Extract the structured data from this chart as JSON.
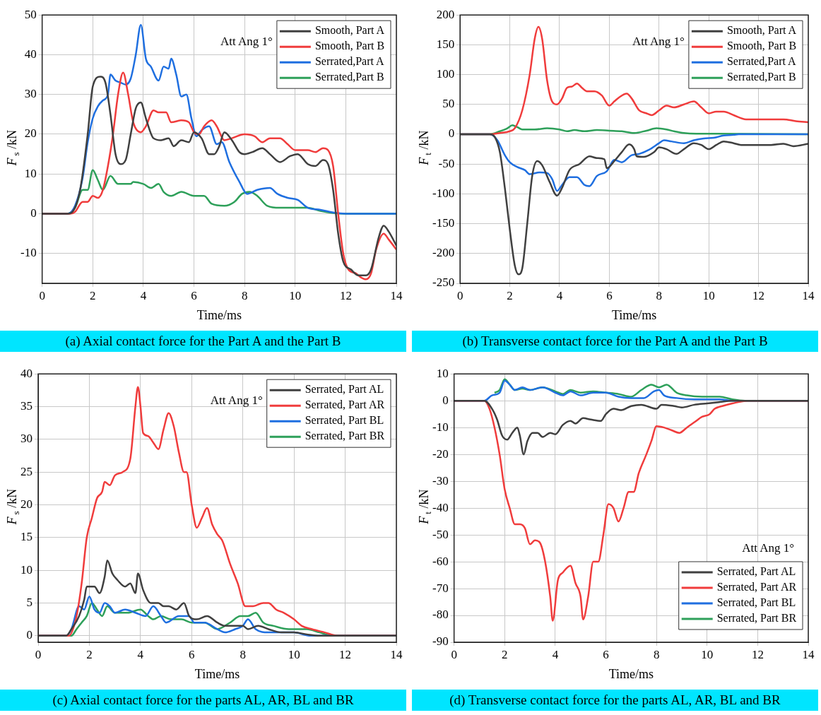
{
  "chart_data": [
    {
      "type": "line",
      "title": "(a) Axial contact force for the Part A and the Part B",
      "xlabel": "Time/ms",
      "ylabel": "F$_{s}$ /kN",
      "annotations": [
        "Att Ang 1°"
      ],
      "legend": "top right",
      "grid": true,
      "xlim": [
        0,
        14
      ],
      "xticks": [
        0,
        2,
        4,
        6,
        8,
        10,
        12,
        14
      ],
      "ylim": [
        -17.5,
        50
      ],
      "yticks": [
        -10,
        0,
        10,
        20,
        30,
        40,
        50
      ],
      "series": [
        {
          "name": "Smooth, Part A",
          "color": "#404040",
          "x": [
            0,
            1,
            1.2,
            1.5,
            1.8,
            2,
            2.3,
            2.5,
            2.7,
            2.9,
            3.1,
            3.3,
            3.5,
            3.7,
            3.9,
            4.1,
            4.4,
            4.7,
            5,
            5.2,
            5.5,
            5.8,
            6,
            6.3,
            6.6,
            6.8,
            7,
            7.2,
            7.5,
            7.8,
            8,
            8.3,
            8.7,
            9,
            9.4,
            9.8,
            10.1,
            10.5,
            10.8,
            11.1,
            11.3,
            11.5,
            11.7,
            11.9,
            12.2,
            12.5,
            12.8,
            13,
            13.3,
            13.5,
            13.7,
            14
          ],
          "values": [
            0,
            0,
            0.5,
            6,
            20,
            32,
            34.5,
            33,
            25,
            15,
            12.5,
            13.5,
            20,
            26.5,
            28,
            24,
            19,
            18.5,
            19,
            17,
            18.5,
            18,
            20.5,
            19,
            15,
            15,
            17,
            20.5,
            18.5,
            15.5,
            15,
            15.5,
            16.5,
            15,
            13,
            14.5,
            15,
            12.5,
            12,
            13.5,
            12.5,
            6,
            -5,
            -12,
            -14,
            -15.5,
            -15.5,
            -14,
            -6,
            -3,
            -4.5,
            -8
          ]
        },
        {
          "name": "Smooth, Part B",
          "color": "#f03c3c",
          "x": [
            0,
            1.1,
            1.3,
            1.6,
            1.8,
            2,
            2.2,
            2.4,
            2.6,
            2.8,
            3,
            3.2,
            3.4,
            3.6,
            3.9,
            4.1,
            4.4,
            4.6,
            4.9,
            5.1,
            5.5,
            5.8,
            6,
            6.2,
            6.4,
            6.7,
            6.9,
            7.2,
            7.5,
            8,
            8.4,
            8.7,
            9,
            9.4,
            9.7,
            10,
            10.5,
            10.8,
            11.1,
            11.3,
            11.5,
            11.7,
            11.9,
            12.1,
            12.4,
            12.6,
            12.8,
            13,
            13.2,
            13.5,
            13.7,
            14
          ],
          "values": [
            0,
            0,
            0.5,
            3,
            3,
            4.5,
            4,
            6,
            12,
            20,
            30,
            35.5,
            30,
            23,
            20.5,
            22,
            26,
            25.5,
            25.5,
            23,
            23.5,
            23,
            20.5,
            20,
            22,
            23.5,
            22,
            18.5,
            19,
            20,
            19.5,
            18,
            19,
            19,
            17.5,
            16,
            16,
            15.5,
            16.5,
            16,
            12,
            0,
            -10,
            -14,
            -15,
            -16,
            -16.5,
            -15,
            -9,
            -5,
            -6.5,
            -9
          ]
        },
        {
          "name": "Serrated,Part A",
          "color": "#1f6fe0",
          "x": [
            0,
            1,
            1.3,
            1.6,
            1.8,
            2,
            2.2,
            2.4,
            2.6,
            2.7,
            2.9,
            3.1,
            3.3,
            3.5,
            3.7,
            3.9,
            4.1,
            4.3,
            4.6,
            4.8,
            5,
            5.1,
            5.3,
            5.5,
            5.7,
            5.9,
            6.1,
            6.3,
            6.6,
            6.9,
            7.1,
            7.4,
            7.8,
            8.1,
            8.5,
            9,
            9.3,
            9.7,
            10.1,
            10.5,
            11,
            11.5,
            12,
            14
          ],
          "values": [
            0,
            0,
            2,
            9,
            18,
            24,
            27,
            28.5,
            30,
            35,
            33.5,
            33,
            32.5,
            34,
            40,
            47.5,
            39,
            37,
            33.5,
            37,
            36.5,
            39,
            35,
            29.5,
            30,
            24,
            19.5,
            21,
            22,
            17.5,
            18,
            13,
            8,
            5,
            6,
            6.5,
            5,
            4,
            3.5,
            1.5,
            1,
            0.3,
            0,
            0
          ]
        },
        {
          "name": "Serrated,Part B",
          "color": "#2ea05a",
          "x": [
            0,
            1,
            1.3,
            1.6,
            1.8,
            2,
            2.2,
            2.4,
            2.7,
            3,
            3.5,
            3.6,
            4,
            4.3,
            4.6,
            4.8,
            5.1,
            5.5,
            6,
            6.4,
            6.7,
            7.2,
            7.6,
            7.9,
            8.2,
            8.5,
            8.9,
            9.4,
            10,
            10.5,
            11,
            11.5,
            12,
            14
          ],
          "values": [
            0,
            0,
            1.5,
            6,
            6,
            11,
            8.5,
            6,
            9.5,
            7.5,
            7.5,
            8,
            7.5,
            6.5,
            7.5,
            5.5,
            4.5,
            5.5,
            4.5,
            4.5,
            2.5,
            2,
            3,
            5,
            5.5,
            4.5,
            2,
            1.5,
            1.5,
            1.5,
            0.7,
            0.2,
            0,
            0
          ]
        }
      ]
    },
    {
      "type": "line",
      "title": "(b) Transverse contact force for the Part A and the Part B",
      "xlabel": "Time/ms",
      "ylabel": "F$_{t}$ /kN",
      "annotations": [
        "Att Ang 1°"
      ],
      "legend": "top right",
      "grid": true,
      "xlim": [
        0,
        14
      ],
      "xticks": [
        0,
        2,
        4,
        6,
        8,
        10,
        12,
        14
      ],
      "ylim": [
        -250,
        200
      ],
      "yticks": [
        -250,
        -200,
        -150,
        -100,
        -50,
        0,
        50,
        100,
        150,
        200
      ],
      "series": [
        {
          "name": "Smooth, Part A",
          "color": "#404040",
          "x": [
            0,
            1.2,
            1.4,
            1.6,
            1.8,
            2,
            2.2,
            2.35,
            2.5,
            2.7,
            2.9,
            3.1,
            3.3,
            3.6,
            3.9,
            4.1,
            4.4,
            4.8,
            5.2,
            5.5,
            5.8,
            5.9,
            6.2,
            6.5,
            6.8,
            7,
            7.1,
            7.4,
            7.8,
            8,
            8.3,
            8.7,
            9,
            9.4,
            9.7,
            10,
            10.3,
            10.6,
            11,
            11.3,
            12,
            12.5,
            13,
            13.4,
            14
          ],
          "values": [
            0,
            0,
            -5,
            -30,
            -90,
            -160,
            -220,
            -235,
            -225,
            -150,
            -70,
            -45,
            -52,
            -80,
            -103,
            -90,
            -60,
            -50,
            -37,
            -40,
            -42,
            -57,
            -45,
            -30,
            -17,
            -25,
            -37,
            -38,
            -30,
            -22,
            -25,
            -33,
            -25,
            -15,
            -18,
            -25,
            -18,
            -12,
            -15,
            -18,
            -18,
            -18,
            -16,
            -20,
            -16
          ]
        },
        {
          "name": "Smooth, Part B",
          "color": "#f03c3c",
          "x": [
            0,
            1.2,
            1.6,
            2,
            2.2,
            2.5,
            2.8,
            3,
            3.15,
            3.3,
            3.5,
            3.7,
            3.9,
            4.1,
            4.3,
            4.5,
            4.7,
            4.9,
            5.1,
            5.4,
            5.7,
            6,
            6.2,
            6.4,
            6.7,
            6.9,
            7.2,
            7.5,
            7.7,
            8,
            8.3,
            8.6,
            9,
            9.4,
            9.7,
            10,
            10.3,
            10.6,
            11,
            11.5,
            12,
            12.5,
            13,
            13.5,
            14
          ],
          "values": [
            0,
            0,
            2,
            5,
            10,
            40,
            100,
            160,
            180,
            160,
            90,
            55,
            50,
            60,
            78,
            80,
            85,
            78,
            72,
            72,
            65,
            48,
            55,
            62,
            68,
            60,
            40,
            35,
            32,
            40,
            48,
            45,
            50,
            55,
            45,
            35,
            38,
            38,
            32,
            25,
            25,
            25,
            25,
            22,
            20
          ]
        },
        {
          "name": "Serrated,Part A",
          "color": "#1f6fe0",
          "x": [
            0,
            1.2,
            1.5,
            1.8,
            2,
            2.3,
            2.6,
            2.8,
            3.2,
            3.5,
            3.7,
            3.9,
            4.1,
            4.4,
            4.7,
            5,
            5.2,
            5.5,
            5.9,
            6.2,
            6.5,
            6.9,
            7.2,
            7.6,
            8,
            8.2,
            8.5,
            9,
            9.4,
            9.8,
            10.2,
            10.6,
            11,
            11.2,
            14
          ],
          "values": [
            0,
            0,
            -10,
            -35,
            -47,
            -55,
            -60,
            -67,
            -64,
            -65,
            -75,
            -95,
            -85,
            -72,
            -72,
            -85,
            -87,
            -70,
            -62,
            -43,
            -47,
            -35,
            -33,
            -26,
            -15,
            -10,
            -12,
            -15,
            -10,
            -7,
            -6,
            -2,
            -1,
            0,
            0
          ]
        },
        {
          "name": "Serrated,Part B",
          "color": "#2ea05a",
          "x": [
            0,
            1.2,
            1.6,
            1.9,
            2.1,
            2.3,
            2.5,
            3,
            3.5,
            4,
            4.3,
            4.6,
            5,
            5.5,
            6,
            6.5,
            7,
            7.5,
            7.9,
            8.3,
            8.6,
            9,
            9.5,
            10,
            14
          ],
          "values": [
            0,
            0,
            5,
            10,
            15,
            12,
            8,
            8,
            10,
            8,
            5,
            7,
            5,
            7,
            6,
            5,
            2,
            6,
            10,
            8,
            5,
            2,
            1,
            1,
            0
          ]
        }
      ]
    },
    {
      "type": "line",
      "title": "(c) Axial contact force for the parts AL, AR, BL and BR",
      "xlabel": "Time/ms",
      "ylabel": "F$_{s}$ /kN",
      "annotations": [
        "Att Ang 1°"
      ],
      "legend": "top right",
      "grid": true,
      "xlim": [
        0,
        14
      ],
      "xticks": [
        0,
        2,
        4,
        6,
        8,
        10,
        12,
        14
      ],
      "ylim": [
        -1,
        40
      ],
      "yticks": [
        0,
        5,
        10,
        15,
        20,
        25,
        30,
        35,
        40
      ],
      "series": [
        {
          "name": "Serrated, Part AL",
          "color": "#404040",
          "x": [
            0,
            1.1,
            1.3,
            1.6,
            1.8,
            1.9,
            2.2,
            2.4,
            2.6,
            2.7,
            2.9,
            3.1,
            3.4,
            3.6,
            3.8,
            3.9,
            4.1,
            4.4,
            4.7,
            4.9,
            5.1,
            5.4,
            5.7,
            5.9,
            6.2,
            6.6,
            7,
            7.3,
            7.7,
            8,
            8.2,
            8.6,
            9,
            9.5,
            10,
            10.5,
            11,
            14
          ],
          "values": [
            0,
            0,
            1,
            3,
            5.5,
            7.5,
            7.5,
            6.5,
            9,
            11.5,
            9.5,
            8.5,
            7.5,
            8,
            6.5,
            9.5,
            7,
            5,
            5,
            4.5,
            4.5,
            4,
            5,
            3,
            2.5,
            3,
            2,
            1.5,
            1.5,
            1.5,
            1,
            1.5,
            1,
            0.5,
            0.5,
            0.2,
            0,
            0
          ]
        },
        {
          "name": "Serrated, Part AR",
          "color": "#f03c3c",
          "x": [
            0,
            1.2,
            1.5,
            1.7,
            1.9,
            2.1,
            2.3,
            2.5,
            2.6,
            2.8,
            3,
            3.3,
            3.6,
            3.8,
            3.9,
            4,
            4.1,
            4.3,
            4.5,
            4.7,
            4.9,
            5.1,
            5.3,
            5.5,
            5.7,
            5.8,
            6,
            6.2,
            6.4,
            6.6,
            6.8,
            7,
            7.2,
            7.5,
            7.8,
            8.1,
            8.4,
            8.8,
            9,
            9.3,
            9.6,
            10,
            10.3,
            10.7,
            11.2,
            11.7,
            14
          ],
          "values": [
            0,
            0,
            3,
            8,
            15,
            18,
            21,
            22,
            23.5,
            23,
            24.5,
            25,
            27,
            35,
            38,
            35,
            31,
            30.5,
            29.5,
            28.5,
            31.5,
            34,
            32,
            28,
            25,
            25,
            20,
            16.5,
            18,
            19.5,
            17,
            15.5,
            14.5,
            11,
            8,
            4.5,
            4.5,
            5,
            5,
            4,
            3.5,
            2.5,
            1.5,
            1,
            0.5,
            0,
            0
          ]
        },
        {
          "name": "Serrated, Part BL",
          "color": "#1f6fe0",
          "x": [
            0,
            1.1,
            1.3,
            1.6,
            1.8,
            2,
            2.2,
            2.4,
            2.6,
            2.8,
            3,
            3.4,
            3.8,
            4.2,
            4.5,
            4.8,
            5,
            5.5,
            5.9,
            6.1,
            6.5,
            7,
            7.3,
            7.7,
            8,
            8.2,
            8.5,
            9,
            9.5,
            10,
            10.6,
            14
          ],
          "values": [
            0,
            0,
            1,
            4.5,
            4,
            6,
            4,
            3.5,
            5,
            4.5,
            3.5,
            4,
            3.5,
            3,
            4.5,
            3,
            2,
            3,
            3,
            2,
            2,
            1,
            0.5,
            1,
            1.5,
            2.5,
            1,
            0.5,
            0.5,
            0.5,
            0,
            0
          ]
        },
        {
          "name": "Serrated, Part BR",
          "color": "#2ea05a",
          "x": [
            0,
            1.3,
            1.5,
            1.7,
            1.9,
            2.1,
            2.3,
            2.5,
            2.7,
            3,
            3.5,
            4,
            4.3,
            4.5,
            4.8,
            5.2,
            5.6,
            6,
            6.5,
            7,
            7.5,
            7.9,
            8.2,
            8.5,
            8.8,
            9.2,
            9.8,
            10.3,
            10.5,
            11,
            11.5,
            14
          ],
          "values": [
            0,
            0,
            1,
            2,
            3,
            5,
            4,
            3,
            4.5,
            3.5,
            3.5,
            4,
            3,
            2.5,
            3,
            2.5,
            2.5,
            2,
            2,
            1,
            2,
            3,
            3,
            3.5,
            2,
            1.5,
            1,
            1,
            1,
            0.5,
            0,
            0
          ]
        }
      ]
    },
    {
      "type": "line",
      "title": "(d) Transverse contact force for the parts AL, AR, BL and BR",
      "xlabel": "Time/ms",
      "ylabel": "F$_{t}$ /kN",
      "annotations": [
        "Att Ang 1°"
      ],
      "legend": "bottom right",
      "grid": true,
      "xlim": [
        0,
        14
      ],
      "xticks": [
        0,
        2,
        4,
        6,
        8,
        10,
        12,
        14
      ],
      "ylim": [
        -90,
        10
      ],
      "yticks": [
        -90,
        -80,
        -70,
        -60,
        -50,
        -40,
        -30,
        -20,
        -10,
        0,
        10
      ],
      "series": [
        {
          "name": "Serrated, Part AL",
          "color": "#404040",
          "x": [
            0,
            1.2,
            1.5,
            1.7,
            1.9,
            2.1,
            2.3,
            2.5,
            2.6,
            2.75,
            2.9,
            3.1,
            3.3,
            3.5,
            3.8,
            4,
            4.3,
            4.6,
            4.8,
            5.1,
            5.4,
            5.8,
            6,
            6.3,
            6.6,
            7,
            7.4,
            8,
            8.2,
            8.7,
            9,
            9.5,
            10,
            10.5,
            11,
            14
          ],
          "values": [
            0,
            0,
            -3,
            -7,
            -13,
            -14.5,
            -12,
            -10,
            -13,
            -20,
            -15,
            -12,
            -12,
            -13.5,
            -12,
            -12.5,
            -9,
            -7.5,
            -8.5,
            -6.5,
            -7,
            -7.5,
            -5,
            -3,
            -3.5,
            -2,
            -1.5,
            -3,
            -1.5,
            -2,
            -2.5,
            -1.5,
            -1,
            -0.5,
            0,
            0
          ]
        },
        {
          "name": "Serrated, Part AR",
          "color": "#f03c3c",
          "x": [
            0,
            1.2,
            1.4,
            1.6,
            1.8,
            2,
            2.2,
            2.4,
            2.6,
            2.8,
            3,
            3.2,
            3.4,
            3.6,
            3.8,
            3.9,
            4.1,
            4.3,
            4.6,
            4.8,
            5,
            5.1,
            5.3,
            5.5,
            5.7,
            5.9,
            6.1,
            6.3,
            6.5,
            6.7,
            6.9,
            7.1,
            7.3,
            7.6,
            7.8,
            8,
            8.3,
            8.6,
            8.9,
            9.2,
            9.5,
            9.8,
            10.1,
            10.3,
            10.6,
            11,
            11.6,
            14
          ],
          "values": [
            0,
            0,
            -3,
            -10,
            -20,
            -33,
            -40,
            -46,
            -46,
            -47.5,
            -53.5,
            -52,
            -53,
            -60,
            -73,
            -82,
            -67,
            -64,
            -61.5,
            -68,
            -73,
            -81.5,
            -73,
            -60,
            -60,
            -50,
            -38.5,
            -40,
            -45,
            -40,
            -34,
            -34,
            -27,
            -20,
            -15,
            -9.5,
            -10,
            -11,
            -12,
            -10,
            -8,
            -6,
            -5,
            -3,
            -2,
            -1,
            0,
            0
          ]
        },
        {
          "name": "Serrated, Part BL",
          "color": "#1f6fe0",
          "x": [
            0,
            1.2,
            1.5,
            1.8,
            2,
            2.2,
            2.4,
            2.7,
            3,
            3.5,
            4,
            4.3,
            4.6,
            5,
            5.5,
            6,
            6.5,
            7,
            7.5,
            7.9,
            8.1,
            8.3,
            8.8,
            9.5,
            10.5,
            11,
            14
          ],
          "values": [
            0,
            0,
            2,
            3,
            7.5,
            6,
            4,
            5,
            4,
            5,
            3,
            2,
            3.5,
            2,
            3,
            3,
            1.5,
            1,
            1,
            3.5,
            4,
            2,
            1,
            0.5,
            0.5,
            0,
            0
          ]
        },
        {
          "name": "Serrated, Part BR",
          "color": "#2ea05a",
          "x": [
            1.6,
            1.8,
            2,
            2.2,
            2.4,
            2.7,
            3,
            3.5,
            4,
            4.3,
            4.6,
            5,
            5.5,
            6,
            6.5,
            7,
            7.4,
            7.8,
            8.1,
            8.4,
            8.8,
            9.2,
            9.8,
            10.5,
            11,
            11.5,
            14
          ],
          "values": [
            3,
            4,
            8,
            6,
            4,
            4.5,
            4,
            5,
            3.5,
            2.5,
            4,
            3,
            3.5,
            3,
            2.5,
            1.5,
            4,
            6,
            5,
            6,
            3,
            2,
            1.5,
            1.5,
            0.5,
            0,
            0
          ]
        }
      ]
    }
  ]
}
